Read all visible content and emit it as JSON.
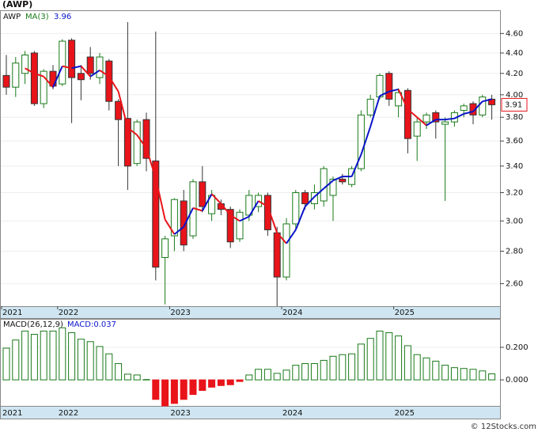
{
  "header": "(AWP)",
  "watermark": "© 12Stocks.com",
  "chart_data": [
    {
      "type": "candlestick",
      "ticker": "AWP",
      "categories": [
        "2021",
        null,
        null,
        null,
        null,
        null,
        "2022",
        null,
        null,
        null,
        null,
        null,
        null,
        null,
        null,
        null,
        null,
        null,
        "2023",
        null,
        null,
        null,
        null,
        null,
        null,
        null,
        null,
        null,
        null,
        null,
        "2024",
        null,
        null,
        null,
        null,
        null,
        null,
        null,
        null,
        null,
        null,
        null,
        "2025",
        null,
        null,
        null,
        null,
        null,
        null,
        null,
        null,
        null,
        null
      ],
      "open": [
        4.18,
        4.07,
        4.2,
        4.4,
        3.92,
        4.22,
        4.1,
        4.53,
        4.2,
        4.36,
        4.16,
        4.32,
        3.94,
        3.79,
        3.42,
        3.78,
        3.44,
        2.76,
        2.9,
        3.14,
        2.9,
        3.28,
        3.05,
        3.12,
        3.08,
        2.88,
        3.04,
        3.1,
        3.18,
        2.92,
        2.64,
        2.98,
        3.2,
        3.12,
        3.14,
        3.18,
        3.3,
        3.26,
        3.38,
        3.82,
        3.98,
        4.2,
        3.9,
        4.04,
        3.64,
        3.76,
        3.84,
        3.74,
        3.76,
        3.86,
        3.92,
        3.82,
        3.96
      ],
      "high": [
        4.38,
        4.36,
        4.42,
        4.42,
        4.24,
        4.28,
        4.54,
        4.55,
        4.28,
        4.46,
        4.4,
        4.34,
        3.96,
        4.72,
        3.78,
        3.84,
        4.62,
        2.9,
        3.16,
        3.22,
        3.3,
        3.4,
        3.22,
        3.15,
        3.1,
        3.08,
        3.22,
        3.2,
        3.2,
        2.96,
        3.02,
        3.22,
        3.22,
        3.26,
        3.4,
        3.32,
        3.34,
        3.4,
        3.86,
        4.0,
        4.2,
        4.22,
        4.06,
        4.06,
        3.8,
        3.84,
        3.86,
        3.8,
        3.86,
        3.92,
        3.94,
        4.0,
        4.0
      ],
      "low": [
        4.0,
        3.98,
        4.1,
        3.9,
        3.88,
        4.05,
        4.08,
        3.75,
        3.95,
        4.14,
        4.1,
        3.86,
        3.4,
        3.22,
        3.4,
        3.36,
        2.62,
        2.48,
        2.8,
        2.8,
        2.88,
        3.06,
        3.0,
        3.04,
        2.82,
        2.86,
        3.0,
        3.06,
        2.9,
        2.47,
        2.62,
        2.94,
        3.08,
        3.08,
        3.1,
        3.0,
        3.26,
        3.24,
        3.36,
        3.8,
        3.96,
        3.9,
        3.8,
        3.5,
        3.44,
        3.7,
        3.62,
        3.14,
        3.72,
        3.8,
        3.74,
        3.8,
        3.78
      ],
      "close": [
        4.07,
        4.3,
        4.38,
        3.92,
        4.22,
        4.08,
        4.52,
        4.16,
        4.14,
        4.2,
        4.36,
        3.94,
        3.78,
        3.4,
        3.76,
        3.46,
        2.7,
        2.88,
        3.15,
        2.84,
        3.28,
        3.1,
        3.18,
        3.08,
        2.86,
        3.06,
        3.18,
        3.18,
        2.94,
        2.64,
        2.98,
        3.2,
        3.12,
        3.2,
        3.38,
        3.3,
        3.28,
        3.38,
        3.82,
        3.96,
        4.18,
        3.96,
        4.02,
        3.62,
        3.76,
        3.82,
        3.76,
        3.76,
        3.84,
        3.9,
        3.82,
        3.98,
        3.91
      ],
      "up_color": "#1a7a1a",
      "down_color": "#e8141a",
      "ma": {
        "name": "MA(3)",
        "last": 3.96,
        "up_color": "#0a14c8",
        "down_color": "#e8141a",
        "values": [
          null,
          null,
          4.25,
          4.2,
          4.17,
          4.07,
          4.27,
          4.25,
          4.27,
          4.17,
          4.23,
          4.17,
          4.03,
          3.71,
          3.65,
          3.54,
          3.31,
          3.01,
          2.91,
          2.96,
          3.09,
          3.07,
          3.19,
          3.12,
          3.04,
          3.0,
          3.03,
          3.14,
          3.1,
          2.92,
          2.85,
          2.94,
          3.1,
          3.17,
          3.23,
          3.29,
          3.32,
          3.32,
          3.49,
          3.72,
          3.99,
          4.03,
          4.05,
          3.87,
          3.8,
          3.73,
          3.78,
          3.78,
          3.79,
          3.83,
          3.85,
          3.94,
          3.96
        ]
      },
      "last_price": 3.91,
      "log_scale": true,
      "ylim": [
        2.47,
        4.85
      ],
      "yticks": [
        {
          "value": 2.6,
          "label": "2.60"
        },
        {
          "value": 2.8,
          "label": "2.80"
        },
        {
          "value": 3.0,
          "label": "3.00"
        },
        {
          "value": 3.2,
          "label": "3.20"
        },
        {
          "value": 3.4,
          "label": "3.40"
        },
        {
          "value": 3.6,
          "label": "3.60"
        },
        {
          "value": 3.8,
          "label": "3.80"
        },
        {
          "value": 4.0,
          "label": "4.00"
        },
        {
          "value": 4.2,
          "label": "4.20"
        },
        {
          "value": 4.4,
          "label": "4.40"
        },
        {
          "value": 4.6,
          "label": "4.60"
        }
      ]
    },
    {
      "type": "bar",
      "name": "MACD(26,12,9)",
      "last_label": "MACD:0.037",
      "pos_color": "#1a7a1a",
      "neg_color": "#e8141a",
      "values": [
        0.195,
        0.245,
        0.3,
        0.28,
        0.3,
        0.3,
        0.32,
        0.29,
        0.25,
        0.235,
        0.205,
        0.16,
        0.1,
        0.035,
        0.03,
        0.002,
        -0.12,
        -0.16,
        -0.145,
        -0.12,
        -0.09,
        -0.065,
        -0.045,
        -0.035,
        -0.03,
        -0.01,
        0.03,
        0.065,
        0.065,
        0.04,
        0.06,
        0.09,
        0.1,
        0.1,
        0.12,
        0.145,
        0.155,
        0.16,
        0.22,
        0.255,
        0.3,
        0.29,
        0.27,
        0.21,
        0.155,
        0.135,
        0.115,
        0.09,
        0.075,
        0.07,
        0.065,
        0.055,
        0.037
      ],
      "ylim": [
        -0.16,
        0.375
      ],
      "yticks": [
        {
          "value": 0,
          "label": "0.000"
        },
        {
          "value": 0.2,
          "label": "0.200"
        }
      ]
    }
  ]
}
